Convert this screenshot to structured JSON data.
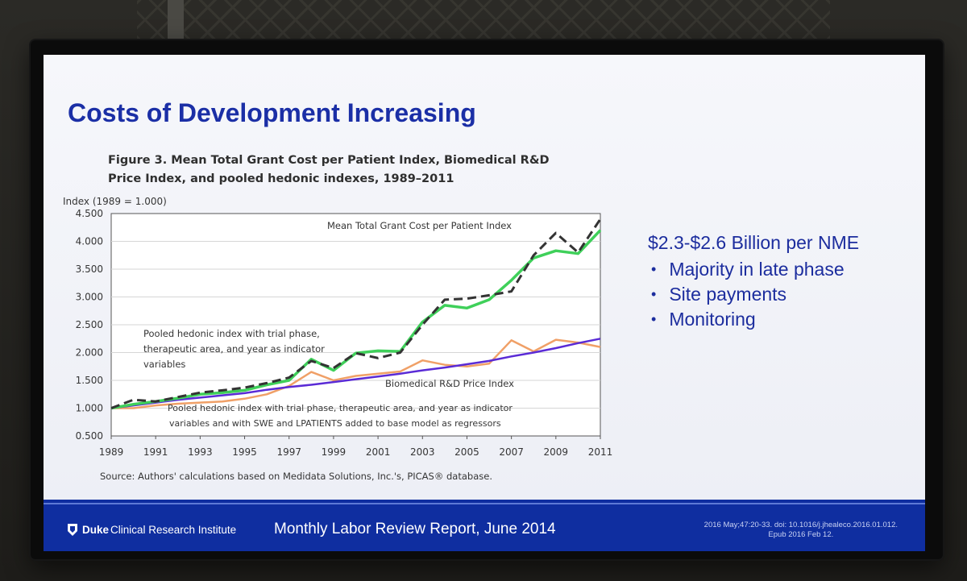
{
  "slide": {
    "title": "Costs of Development Increasing",
    "figure_title_line1": "Figure 3. Mean Total Grant Cost per Patient Index, Biomedical R&D",
    "figure_title_line2": "Price Index, and pooled hedonic indexes, 1989–2011",
    "side_heading": "$2.3-$2.6 Billion per NME",
    "side_bullets": [
      "Majority in late phase",
      "Site payments",
      "Monitoring"
    ],
    "source": "Source: Authors' calculations based on Medidata Solutions, Inc.'s, PICAS® database.",
    "footer_center": "Monthly Labor Review Report, June 2014",
    "footer_cite_line1": "2016 May;47:20-33. doi: 10.1016/j.jhealeco.2016.01.012.",
    "footer_cite_line2": "Epub 2016 Feb 12.",
    "logo_bold": "Duke",
    "logo_rest": "Clinical Research Institute"
  },
  "colors": {
    "title_blue": "#1b2fa6",
    "footer_blue": "#0f2ea0",
    "green": "#3fd05a",
    "orange": "#f0a067",
    "purple": "#5a2bd6",
    "dashed": "#333333"
  },
  "chart_data": {
    "type": "line",
    "ylabel": "Index (1989 = 1.000)",
    "ylim": [
      0.5,
      4.5
    ],
    "yticks": [
      "0.500",
      "1.000",
      "1.500",
      "2.000",
      "2.500",
      "3.000",
      "3.500",
      "4.000",
      "4.500"
    ],
    "xlim": [
      1989,
      2011
    ],
    "xticks": [
      "1989",
      "1991",
      "1993",
      "1995",
      "1997",
      "1999",
      "2001",
      "2003",
      "2005",
      "2007",
      "2009",
      "2011"
    ],
    "x": [
      1989,
      1990,
      1991,
      1992,
      1993,
      1994,
      1995,
      1996,
      1997,
      1998,
      1999,
      2000,
      2001,
      2002,
      2003,
      2004,
      2005,
      2006,
      2007,
      2008,
      2009,
      2010,
      2011
    ],
    "grid": true,
    "series": [
      {
        "name": "Mean Total Grant Cost per Patient Index",
        "style": "dashed",
        "color": "#333333",
        "values": [
          1.0,
          1.15,
          1.12,
          1.2,
          1.28,
          1.32,
          1.37,
          1.45,
          1.55,
          1.85,
          1.72,
          1.99,
          1.9,
          2.0,
          2.5,
          2.95,
          2.97,
          3.03,
          3.1,
          3.75,
          4.15,
          3.8,
          4.4
        ]
      },
      {
        "name": "Pooled hedonic index with trial phase, therapeutic area, and year as indicator variables",
        "style": "solid",
        "color": "#3fd05a",
        "values": [
          1.0,
          1.07,
          1.12,
          1.18,
          1.25,
          1.28,
          1.32,
          1.42,
          1.5,
          1.88,
          1.68,
          1.99,
          2.03,
          2.02,
          2.55,
          2.85,
          2.8,
          2.95,
          3.3,
          3.7,
          3.83,
          3.78,
          4.2
        ]
      },
      {
        "name": "Biomedical R&D Price Index",
        "style": "solid",
        "color": "#5a2bd6",
        "values": [
          1.0,
          1.05,
          1.1,
          1.15,
          1.19,
          1.23,
          1.27,
          1.33,
          1.38,
          1.42,
          1.47,
          1.52,
          1.57,
          1.62,
          1.68,
          1.73,
          1.79,
          1.85,
          1.93,
          2.0,
          2.08,
          2.17,
          2.25
        ]
      },
      {
        "name": "Pooled hedonic index with trial phase, therapeutic area, and year as indicator variables and with SWE and LPATIENTS added to base model as regressors",
        "style": "solid",
        "color": "#f0a067",
        "values": [
          1.0,
          1.0,
          1.05,
          1.08,
          1.1,
          1.12,
          1.17,
          1.25,
          1.4,
          1.65,
          1.5,
          1.58,
          1.62,
          1.66,
          1.86,
          1.78,
          1.75,
          1.8,
          2.22,
          2.02,
          2.23,
          2.18,
          2.1
        ]
      }
    ],
    "annotations": {
      "mean_total": "Mean Total Grant Cost per Patient Index",
      "pooled_line1": "Pooled hedonic index with trial phase,",
      "pooled_line2": "therapeutic area, and year as indicator",
      "pooled_line3": "variables",
      "biomedical": "Biomedical R&D Price Index",
      "swe_line1": "Pooled hedonic index with trial phase, therapeutic area, and year as indicator",
      "swe_line2": "variables and with SWE and LPATIENTS added to base model as regressors"
    }
  }
}
